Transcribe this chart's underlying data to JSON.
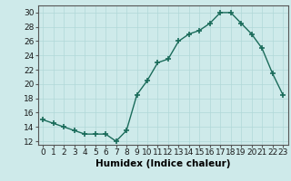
{
  "x": [
    0,
    1,
    2,
    3,
    4,
    5,
    6,
    7,
    8,
    9,
    10,
    11,
    12,
    13,
    14,
    15,
    16,
    17,
    18,
    19,
    20,
    21,
    22,
    23
  ],
  "y": [
    15,
    14.5,
    14,
    13.5,
    13,
    13,
    13,
    12,
    13.5,
    18.5,
    20.5,
    23,
    23.5,
    26,
    27,
    27.5,
    28.5,
    30,
    30,
    28.5,
    27,
    25,
    21.5,
    18.5
  ],
  "line_color": "#1a6b5a",
  "marker": "+",
  "marker_size": 4,
  "marker_lw": 1.2,
  "line_width": 1.0,
  "bg_color": "#ceeaea",
  "grid_color": "#b0d8d8",
  "xlabel": "Humidex (Indice chaleur)",
  "xlabel_fontsize": 7.5,
  "tick_fontsize": 6.5,
  "ylim": [
    11.5,
    31
  ],
  "yticks": [
    12,
    14,
    16,
    18,
    20,
    22,
    24,
    26,
    28,
    30
  ],
  "xticks": [
    0,
    1,
    2,
    3,
    4,
    5,
    6,
    7,
    8,
    9,
    10,
    11,
    12,
    13,
    14,
    15,
    16,
    17,
    18,
    19,
    20,
    21,
    22,
    23
  ],
  "xtick_labels": [
    "0",
    "1",
    "2",
    "3",
    "4",
    "5",
    "6",
    "7",
    "8",
    "9",
    "10",
    "11",
    "12",
    "13",
    "14",
    "15",
    "16",
    "17",
    "18",
    "19",
    "20",
    "21",
    "22",
    "23"
  ]
}
